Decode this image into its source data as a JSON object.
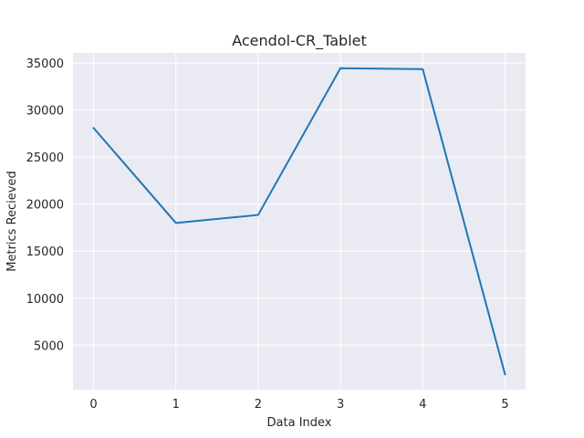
{
  "chart_data": {
    "type": "line",
    "title": "Acendol-CR_Tablet",
    "xlabel": "Data Index",
    "ylabel": "Metrics Recieved",
    "x": [
      0,
      1,
      2,
      3,
      4,
      5
    ],
    "series": [
      {
        "values": [
          28100,
          18000,
          18850,
          34450,
          34350,
          1900
        ]
      }
    ],
    "xticks": [
      0,
      1,
      2,
      3,
      4,
      5
    ],
    "yticks": [
      5000,
      10000,
      15000,
      20000,
      25000,
      30000,
      35000
    ],
    "xlim": [
      -0.25,
      5.25
    ],
    "ylim": [
      276,
      36077
    ],
    "grid": true,
    "colors": {
      "background": "#eaeaf2",
      "grid": "#ffffff",
      "line": "#1f77b4",
      "text": "#262626"
    }
  }
}
